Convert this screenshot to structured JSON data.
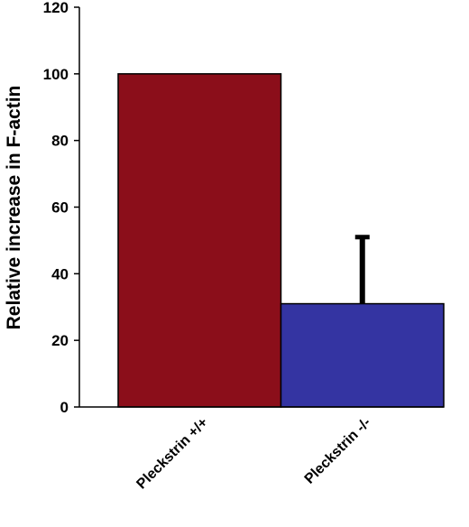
{
  "chart_data": {
    "type": "bar",
    "ylabel": "Relative increase in F-actin",
    "categories": [
      "Pleckstrin +/+",
      "Pleckstrin -/-"
    ],
    "values": [
      100,
      31
    ],
    "errors": [
      null,
      20
    ],
    "colors": [
      "#8b0e1a",
      "#3434a2"
    ],
    "ylim": [
      0,
      120
    ],
    "yticks": [
      0,
      20,
      40,
      60,
      80,
      100,
      120
    ]
  }
}
